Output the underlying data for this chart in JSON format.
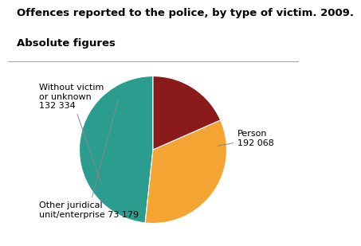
{
  "title_line1": "Offences reported to the police, by type of victim. 2009.",
  "title_line2": "Absolute figures",
  "slices": [
    {
      "label_line1": "Person",
      "label_line2": "192 068",
      "value": 192068,
      "color": "#2a9d8f"
    },
    {
      "label_line1": "Without victim",
      "label_line2": "or unknown",
      "label_line3": "132 334",
      "value": 132334,
      "color": "#f4a432"
    },
    {
      "label_line1": "Other juridical",
      "label_line2": "unit/enterprise 73 179",
      "value": 73179,
      "color": "#8b1a1a"
    }
  ],
  "title_fontsize": 9.5,
  "label_fontsize": 8,
  "background_color": "#ffffff",
  "startangle": 90
}
